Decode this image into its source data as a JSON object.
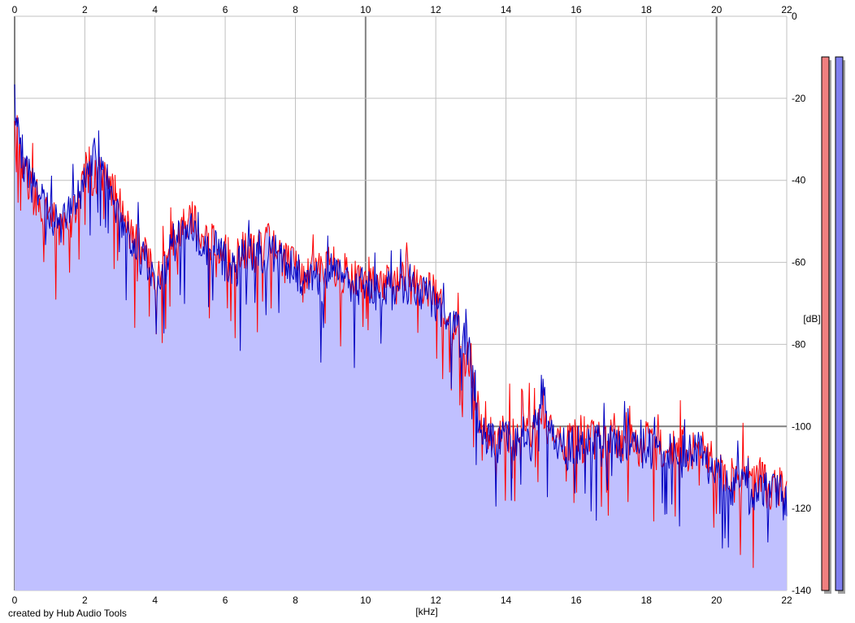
{
  "footer": {
    "credit": "created by Hub Audio Tools"
  },
  "colors": {
    "background": "#ffffff",
    "grid_minor": "#c0c0c0",
    "grid_major": "#808080",
    "fill": "#c0c0ff",
    "series_left": "#ff0000",
    "series_right": "#0000c0",
    "meter_left": "#f08080",
    "meter_right": "#8080f0"
  },
  "chart_data": {
    "type": "area",
    "title": "",
    "xlabel": "[kHz]",
    "ylabel": "[dB]",
    "xlim": [
      0,
      22
    ],
    "ylim": [
      -140,
      0
    ],
    "x_ticks": [
      "0",
      "2",
      "4",
      "6",
      "8",
      "10",
      "12",
      "14",
      "16",
      "18",
      "20",
      "22"
    ],
    "y_ticks": [
      "0",
      "-20",
      "-40",
      "-60",
      "-80",
      "-100",
      "-120",
      "-140"
    ],
    "grid": true,
    "series": [
      {
        "channel": "left",
        "color": "#ff0000",
        "x": [
          0,
          0.25,
          0.5,
          0.75,
          1,
          1.25,
          1.5,
          1.75,
          2,
          2.25,
          2.5,
          2.75,
          3,
          3.25,
          3.5,
          3.75,
          4,
          4.25,
          4.5,
          4.75,
          5,
          5.25,
          5.5,
          5.75,
          6,
          6.25,
          6.5,
          6.75,
          7,
          7.25,
          7.5,
          7.75,
          8,
          8.25,
          8.5,
          8.75,
          9,
          9.25,
          9.5,
          9.75,
          10,
          10.25,
          10.5,
          10.75,
          11,
          11.25,
          11.5,
          11.75,
          12,
          12.25,
          12.5,
          12.75,
          13,
          13.25,
          13.5,
          13.75,
          14,
          14.25,
          14.5,
          14.75,
          15,
          15.25,
          15.5,
          15.75,
          16,
          16.25,
          16.5,
          16.75,
          17,
          17.25,
          17.5,
          17.75,
          18,
          18.25,
          18.5,
          18.75,
          19,
          19.25,
          19.5,
          19.75,
          20,
          20.25,
          20.5,
          20.75,
          21,
          21.25,
          21.5,
          21.75,
          22
        ],
        "y": [
          -27,
          -37,
          -42,
          -46,
          -49,
          -52,
          -51,
          -47,
          -40,
          -39,
          -38,
          -41,
          -46,
          -52,
          -56,
          -58,
          -63,
          -61,
          -54,
          -52,
          -49,
          -52,
          -56,
          -55,
          -58,
          -60,
          -57,
          -58,
          -57,
          -55,
          -56,
          -58,
          -61,
          -63,
          -60,
          -62,
          -60,
          -63,
          -63,
          -64,
          -62,
          -66,
          -64,
          -65,
          -63,
          -62,
          -65,
          -67,
          -68,
          -72,
          -77,
          -80,
          -84,
          -99,
          -101,
          -102,
          -101,
          -103,
          -101,
          -102,
          -99,
          -101,
          -103,
          -104,
          -103,
          -105,
          -103,
          -104,
          -103,
          -105,
          -103,
          -106,
          -103,
          -106,
          -105,
          -106,
          -104,
          -106,
          -105,
          -108,
          -109,
          -113,
          -114,
          -112,
          -115,
          -112,
          -116,
          -114,
          -118
        ]
      },
      {
        "channel": "right",
        "color": "#0000c0",
        "x": [
          0,
          0.25,
          0.5,
          0.75,
          1,
          1.25,
          1.5,
          1.75,
          2,
          2.25,
          2.5,
          2.75,
          3,
          3.25,
          3.5,
          3.75,
          4,
          4.25,
          4.5,
          4.75,
          5,
          5.25,
          5.5,
          5.75,
          6,
          6.25,
          6.5,
          6.75,
          7,
          7.25,
          7.5,
          7.75,
          8,
          8.25,
          8.5,
          8.75,
          9,
          9.25,
          9.5,
          9.75,
          10,
          10.25,
          10.5,
          10.75,
          11,
          11.25,
          11.5,
          11.75,
          12,
          12.25,
          12.5,
          12.75,
          13,
          13.25,
          13.5,
          13.75,
          14,
          14.25,
          14.5,
          14.75,
          15,
          15.25,
          15.5,
          15.75,
          16,
          16.25,
          16.5,
          16.75,
          17,
          17.25,
          17.5,
          17.75,
          18,
          18.25,
          18.5,
          18.75,
          19,
          19.25,
          19.5,
          19.75,
          20,
          20.25,
          20.5,
          20.75,
          21,
          21.25,
          21.5,
          21.75,
          22
        ],
        "y": [
          -22,
          -35,
          -41,
          -44,
          -49,
          -51,
          -49,
          -45,
          -41,
          -34,
          -38,
          -43,
          -48,
          -53,
          -57,
          -60,
          -65,
          -62,
          -56,
          -54,
          -51,
          -54,
          -58,
          -57,
          -60,
          -62,
          -59,
          -60,
          -59,
          -57,
          -58,
          -60,
          -62,
          -64,
          -63,
          -67,
          -62,
          -64,
          -65,
          -66,
          -64,
          -68,
          -66,
          -67,
          -65,
          -65,
          -67,
          -68,
          -70,
          -74,
          -76,
          -79,
          -82,
          -101,
          -103,
          -104,
          -103,
          -105,
          -102,
          -104,
          -90,
          -102,
          -104,
          -106,
          -104,
          -106,
          -104,
          -105,
          -104,
          -106,
          -104,
          -107,
          -104,
          -107,
          -106,
          -107,
          -105,
          -107,
          -106,
          -109,
          -110,
          -114,
          -115,
          -113,
          -116,
          -113,
          -117,
          -115,
          -120
        ]
      }
    ]
  }
}
